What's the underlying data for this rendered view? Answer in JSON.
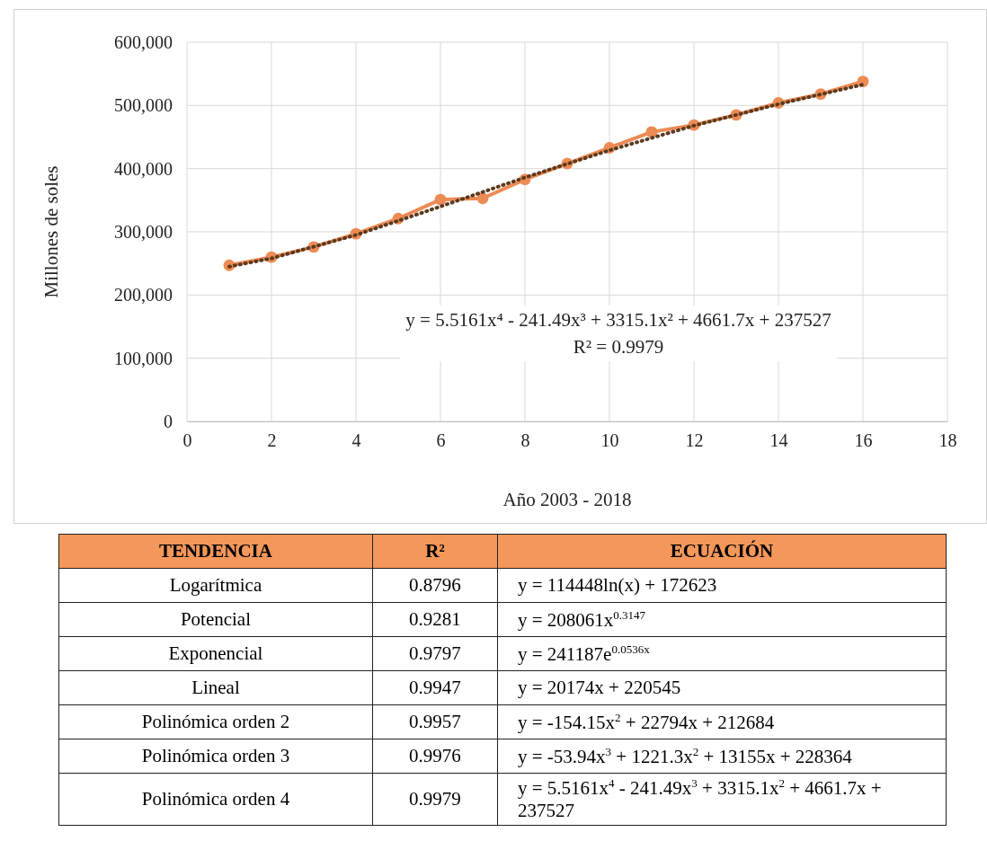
{
  "chart_data": [
    {
      "type": "line",
      "xlabel": "Año 2003 - 2018",
      "ylabel": "Millones de soles",
      "x": [
        1,
        2,
        3,
        4,
        5,
        6,
        7,
        8,
        9,
        10,
        11,
        12,
        13,
        14,
        15,
        16
      ],
      "series": [
        {
          "type": "line",
          "color": "#ed8b55",
          "marker": "circle",
          "line_style": "solid",
          "values": [
            247000,
            260000,
            276000,
            297000,
            321000,
            351000,
            353000,
            383000,
            408000,
            433000,
            458000,
            469000,
            485000,
            504000,
            518000,
            538000
          ]
        },
        {
          "type": "line",
          "color": "#5b3a1e",
          "marker": "none",
          "line_style": "dotted",
          "x": [
            1,
            2,
            4,
            6,
            8,
            10,
            12,
            14,
            16
          ],
          "values": [
            245000,
            258000,
            295000,
            340000,
            386000,
            429000,
            468000,
            502000,
            533000
          ]
        }
      ],
      "xlim": [
        0,
        18
      ],
      "xticks": [
        0,
        2,
        4,
        6,
        8,
        10,
        12,
        14,
        16,
        18
      ],
      "ylim": [
        0,
        600000
      ],
      "yticks": [
        0,
        {
          "value": 100000,
          "label": "100,000"
        },
        {
          "value": 200000,
          "label": "200,000"
        },
        {
          "value": 300000,
          "label": "300,000"
        },
        {
          "value": 400000,
          "label": "400,000"
        },
        {
          "value": 500000,
          "label": "500,000"
        },
        {
          "value": 600000,
          "label": "600,000"
        }
      ],
      "grid": true,
      "annotations": [
        "y = 5.5161x⁴ - 241.49x³ + 3315.1x² + 4661.7x + 237527",
        "R² = 0.9979"
      ]
    },
    {
      "type": "other",
      "annotations": [
        "TENDENCIA",
        "R²",
        "ECUACIÓN",
        "Logarítmica",
        "0.8796",
        "y = 114448ln(x) + 172623",
        "Potencial",
        "0.9281",
        "y = 208061x$^{0.3147}$",
        "Exponencial",
        "0.9797",
        "y = 241187e$^{0.0536x}$",
        "Lineal",
        "0.9947",
        "y = 20174x + 220545",
        "Polinómica orden 2",
        "0.9957",
        "y = -154.15x$^{2}$ + 22794x + 212684",
        "Polinómica orden 3",
        "0.9976",
        "y = -53.94x$^{3}$ + 1221.3x$^{2}$ + 13155x + 228364",
        "Polinómica orden 4",
        "0.9979",
        "y = 5.5161x$^{4}$ - 241.49x$^{3}$ + 3315.1x$^{2}$ + 4661.7x + 237527"
      ]
    }
  ]
}
